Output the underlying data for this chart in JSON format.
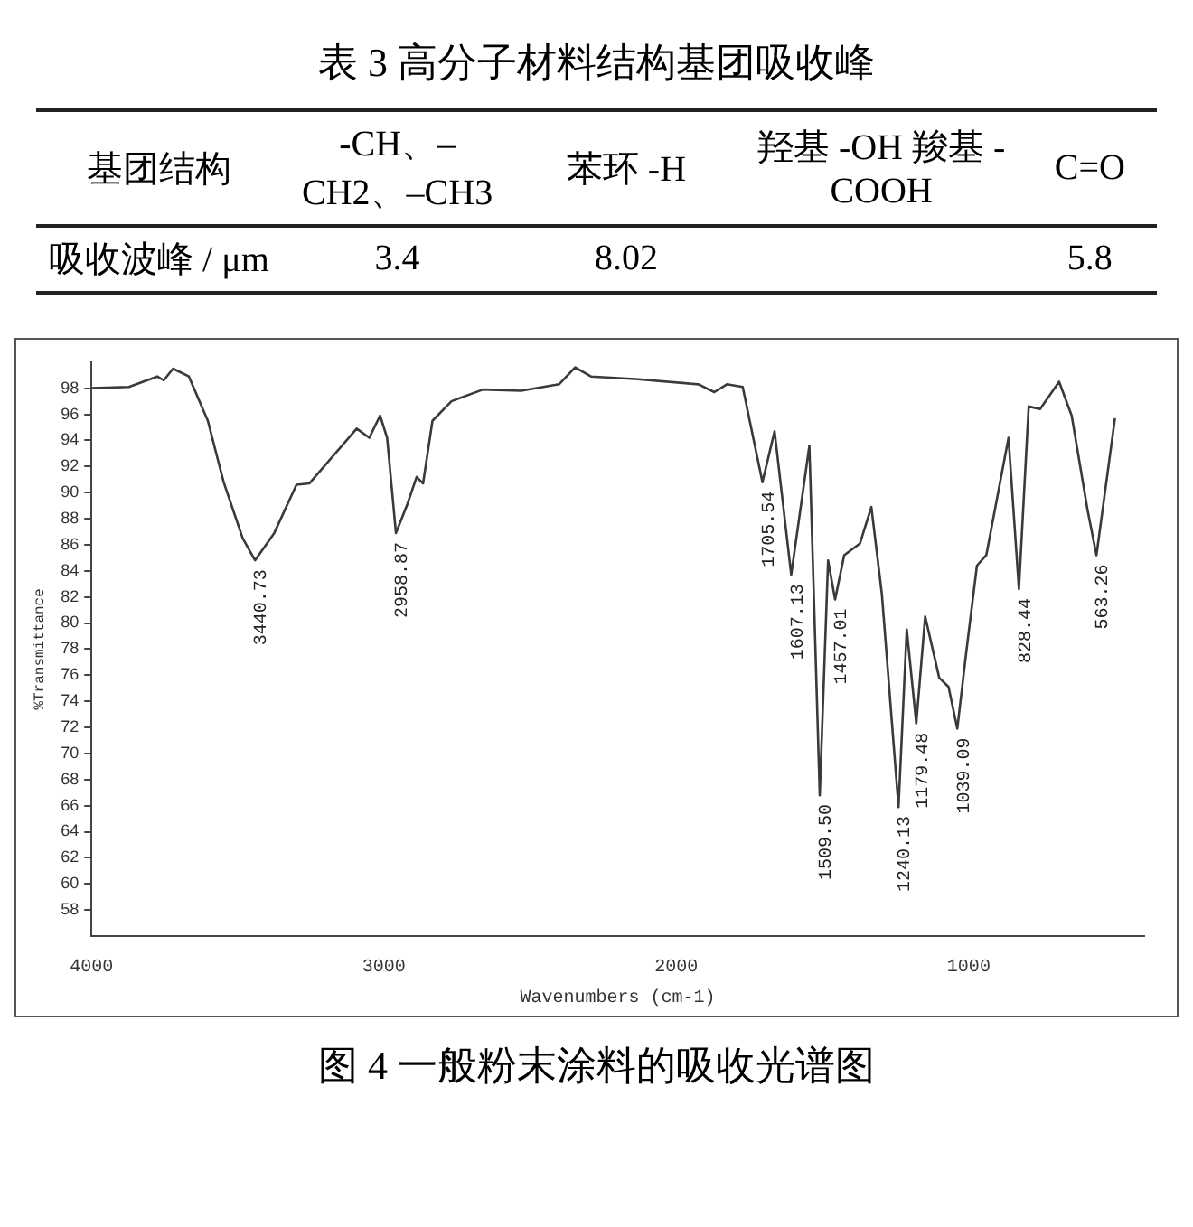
{
  "chart_data": [
    {
      "type": "other",
      "title": "表 3  高分子材料结构基团吸收峰",
      "xlabel": "基团结构",
      "ylabel": "吸收波峰 / μm",
      "categories": [
        "-CH、–CH2、–CH3",
        "苯环 -H",
        "羟基 -OH 羧基 -COOH",
        "C=O"
      ],
      "values": [
        3.4,
        8.02,
        null,
        5.8
      ],
      "data_labels": true
    },
    {
      "type": "line",
      "title": "图 4  一般粉末涂料的吸收光谱图",
      "xlabel": "Wavenumbers (cm-1)",
      "ylabel": "%Transmittance",
      "x": [
        4000,
        3872,
        3775,
        3753,
        3721,
        3667,
        3602,
        3548,
        3483,
        3440.73,
        3375,
        3299,
        3255,
        3093,
        3050,
        3013,
        2989,
        2958.87,
        2920,
        2888,
        2866,
        2834,
        2769,
        2661,
        2531,
        2401,
        2346,
        2292,
        2141,
        1924,
        1870,
        1827,
        1773,
        1705.54,
        1664,
        1607.13,
        1545,
        1509.5,
        1481,
        1457.01,
        1426,
        1372,
        1333,
        1297,
        1240.13,
        1212,
        1179.48,
        1149,
        1101,
        1069,
        1039.09,
        1011,
        972,
        940,
        864,
        828.44,
        795,
        756,
        691,
        648,
        594,
        563.26,
        500
      ],
      "series": [
        {
          "color": "#3a3a3a",
          "values": [
            98.0,
            98.1,
            98.9,
            98.6,
            99.5,
            98.9,
            95.5,
            90.8,
            86.5,
            84.8,
            86.9,
            90.6,
            90.7,
            94.9,
            94.2,
            95.9,
            94.2,
            86.9,
            89.1,
            91.2,
            90.7,
            95.5,
            97.0,
            97.9,
            97.8,
            98.3,
            99.6,
            98.9,
            98.7,
            98.3,
            97.7,
            98.3,
            98.1,
            90.8,
            94.7,
            83.7,
            93.6,
            66.8,
            84.8,
            81.8,
            85.2,
            86.1,
            88.9,
            82.2,
            65.9,
            79.5,
            72.3,
            80.5,
            75.8,
            75.1,
            71.9,
            77.3,
            84.4,
            85.2,
            94.2,
            82.6,
            96.6,
            96.4,
            98.5,
            95.9,
            88.7,
            85.2,
            95.7
          ]
        }
      ],
      "xlim": [
        4000,
        400
      ],
      "xticks": [
        4000,
        3000,
        2000,
        1000
      ],
      "ylim": [
        56,
        100
      ],
      "yticks": [
        58,
        60,
        62,
        64,
        66,
        68,
        70,
        72,
        74,
        76,
        78,
        80,
        82,
        84,
        86,
        88,
        90,
        92,
        94,
        96,
        98
      ],
      "grid": false,
      "legend": false,
      "marker": "none",
      "line_style": "solid",
      "annotations": [
        {
          "text": "3440.73",
          "x": 3440.73,
          "y": 84.8
        },
        {
          "text": "2958.87",
          "x": 2958.87,
          "y": 86.9
        },
        {
          "text": "1705.54",
          "x": 1705.54,
          "y": 90.8
        },
        {
          "text": "1607.13",
          "x": 1607.13,
          "y": 83.7
        },
        {
          "text": "1457.01",
          "x": 1457.01,
          "y": 81.8
        },
        {
          "text": "1509.50",
          "x": 1509.5,
          "y": 66.8
        },
        {
          "text": "1240.13",
          "x": 1240.13,
          "y": 65.9
        },
        {
          "text": "1179.48",
          "x": 1179.48,
          "y": 72.3
        },
        {
          "text": "1039.09",
          "x": 1039.09,
          "y": 71.9
        },
        {
          "text": "828.44",
          "x": 828.44,
          "y": 82.6
        },
        {
          "text": "563.26",
          "x": 563.26,
          "y": 85.2
        }
      ]
    }
  ]
}
